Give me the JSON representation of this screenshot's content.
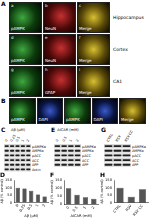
{
  "panels": {
    "A": {
      "label": "A",
      "rows": [
        {
          "region": "Hippocampus",
          "images": [
            {
              "letter": "a",
              "text": "pAMPK"
            },
            {
              "letter": "b",
              "text": "NeuN"
            },
            {
              "letter": "c",
              "text": "Merge"
            }
          ]
        },
        {
          "region": "Cortex",
          "images": [
            {
              "letter": "d",
              "text": "pAMPK"
            },
            {
              "letter": "e",
              "text": "NeuN"
            },
            {
              "letter": "f",
              "text": "Merge"
            }
          ]
        },
        {
          "region": "CA1",
          "images": [
            {
              "letter": "g",
              "text": "pAMPK"
            },
            {
              "letter": "h",
              "text": "GFAP"
            },
            {
              "letter": "i",
              "text": "Merge"
            }
          ]
        }
      ]
    },
    "B": {
      "label": "B",
      "images": [
        "pAMPK",
        "DAPI",
        "pAMPK",
        "DAPI",
        "Merge"
      ]
    },
    "C": {
      "label": "C",
      "header": "Aβ (μM)",
      "lanes": [
        "0",
        "0.25",
        "0.5",
        "1",
        "2"
      ],
      "bands": [
        "pAMPKα",
        "AMPKα",
        "pACC",
        "ACC",
        "APP",
        "Actin"
      ]
    },
    "E": {
      "label": "E",
      "header": "AICAR (mM)",
      "lanes": [
        "0",
        "0.5",
        "1",
        "2"
      ],
      "bands": [
        "pAMPKα",
        "AMPKα",
        "pACC",
        "ACC",
        "APP"
      ]
    },
    "G": {
      "label": "G",
      "header": "",
      "lanes": [
        "CTRL",
        "RSV",
        "RSV CC"
      ],
      "bands": [
        "pAMPKα",
        "AMPKα",
        "pACC",
        "ACC",
        "APP"
      ]
    }
  },
  "chart_data": [
    {
      "type": "bar",
      "title": "D",
      "x_label": "Aβ (μM)",
      "y_label": "Aβ (% control)",
      "categories": [
        "0",
        "0.25",
        "0.5",
        "1",
        "2"
      ],
      "values": [
        100,
        95,
        80,
        55,
        40
      ],
      "color": "#555555",
      "ylim": [
        0,
        150
      ],
      "yticks": [
        0,
        50,
        100,
        150
      ],
      "grid": false
    },
    {
      "type": "bar",
      "title": "F",
      "x_label": "AICAR (mM)",
      "y_label": "Aβ (% control)",
      "categories": [
        "0",
        "0.5",
        "1",
        "2"
      ],
      "values": [
        100,
        60,
        45,
        35
      ],
      "color": "#555555",
      "ylim": [
        0,
        150
      ],
      "yticks": [
        0,
        50,
        100,
        150
      ],
      "grid": false
    },
    {
      "type": "bar",
      "title": "H",
      "x_label": "",
      "y_label": "Aβ (% control)",
      "categories": [
        "CTRL",
        "RSV",
        "RSV CC"
      ],
      "values": [
        100,
        40,
        90
      ],
      "color": "#555555",
      "ylim": [
        0,
        150
      ],
      "yticks": [
        0,
        50,
        100,
        150
      ],
      "grid": false
    }
  ]
}
